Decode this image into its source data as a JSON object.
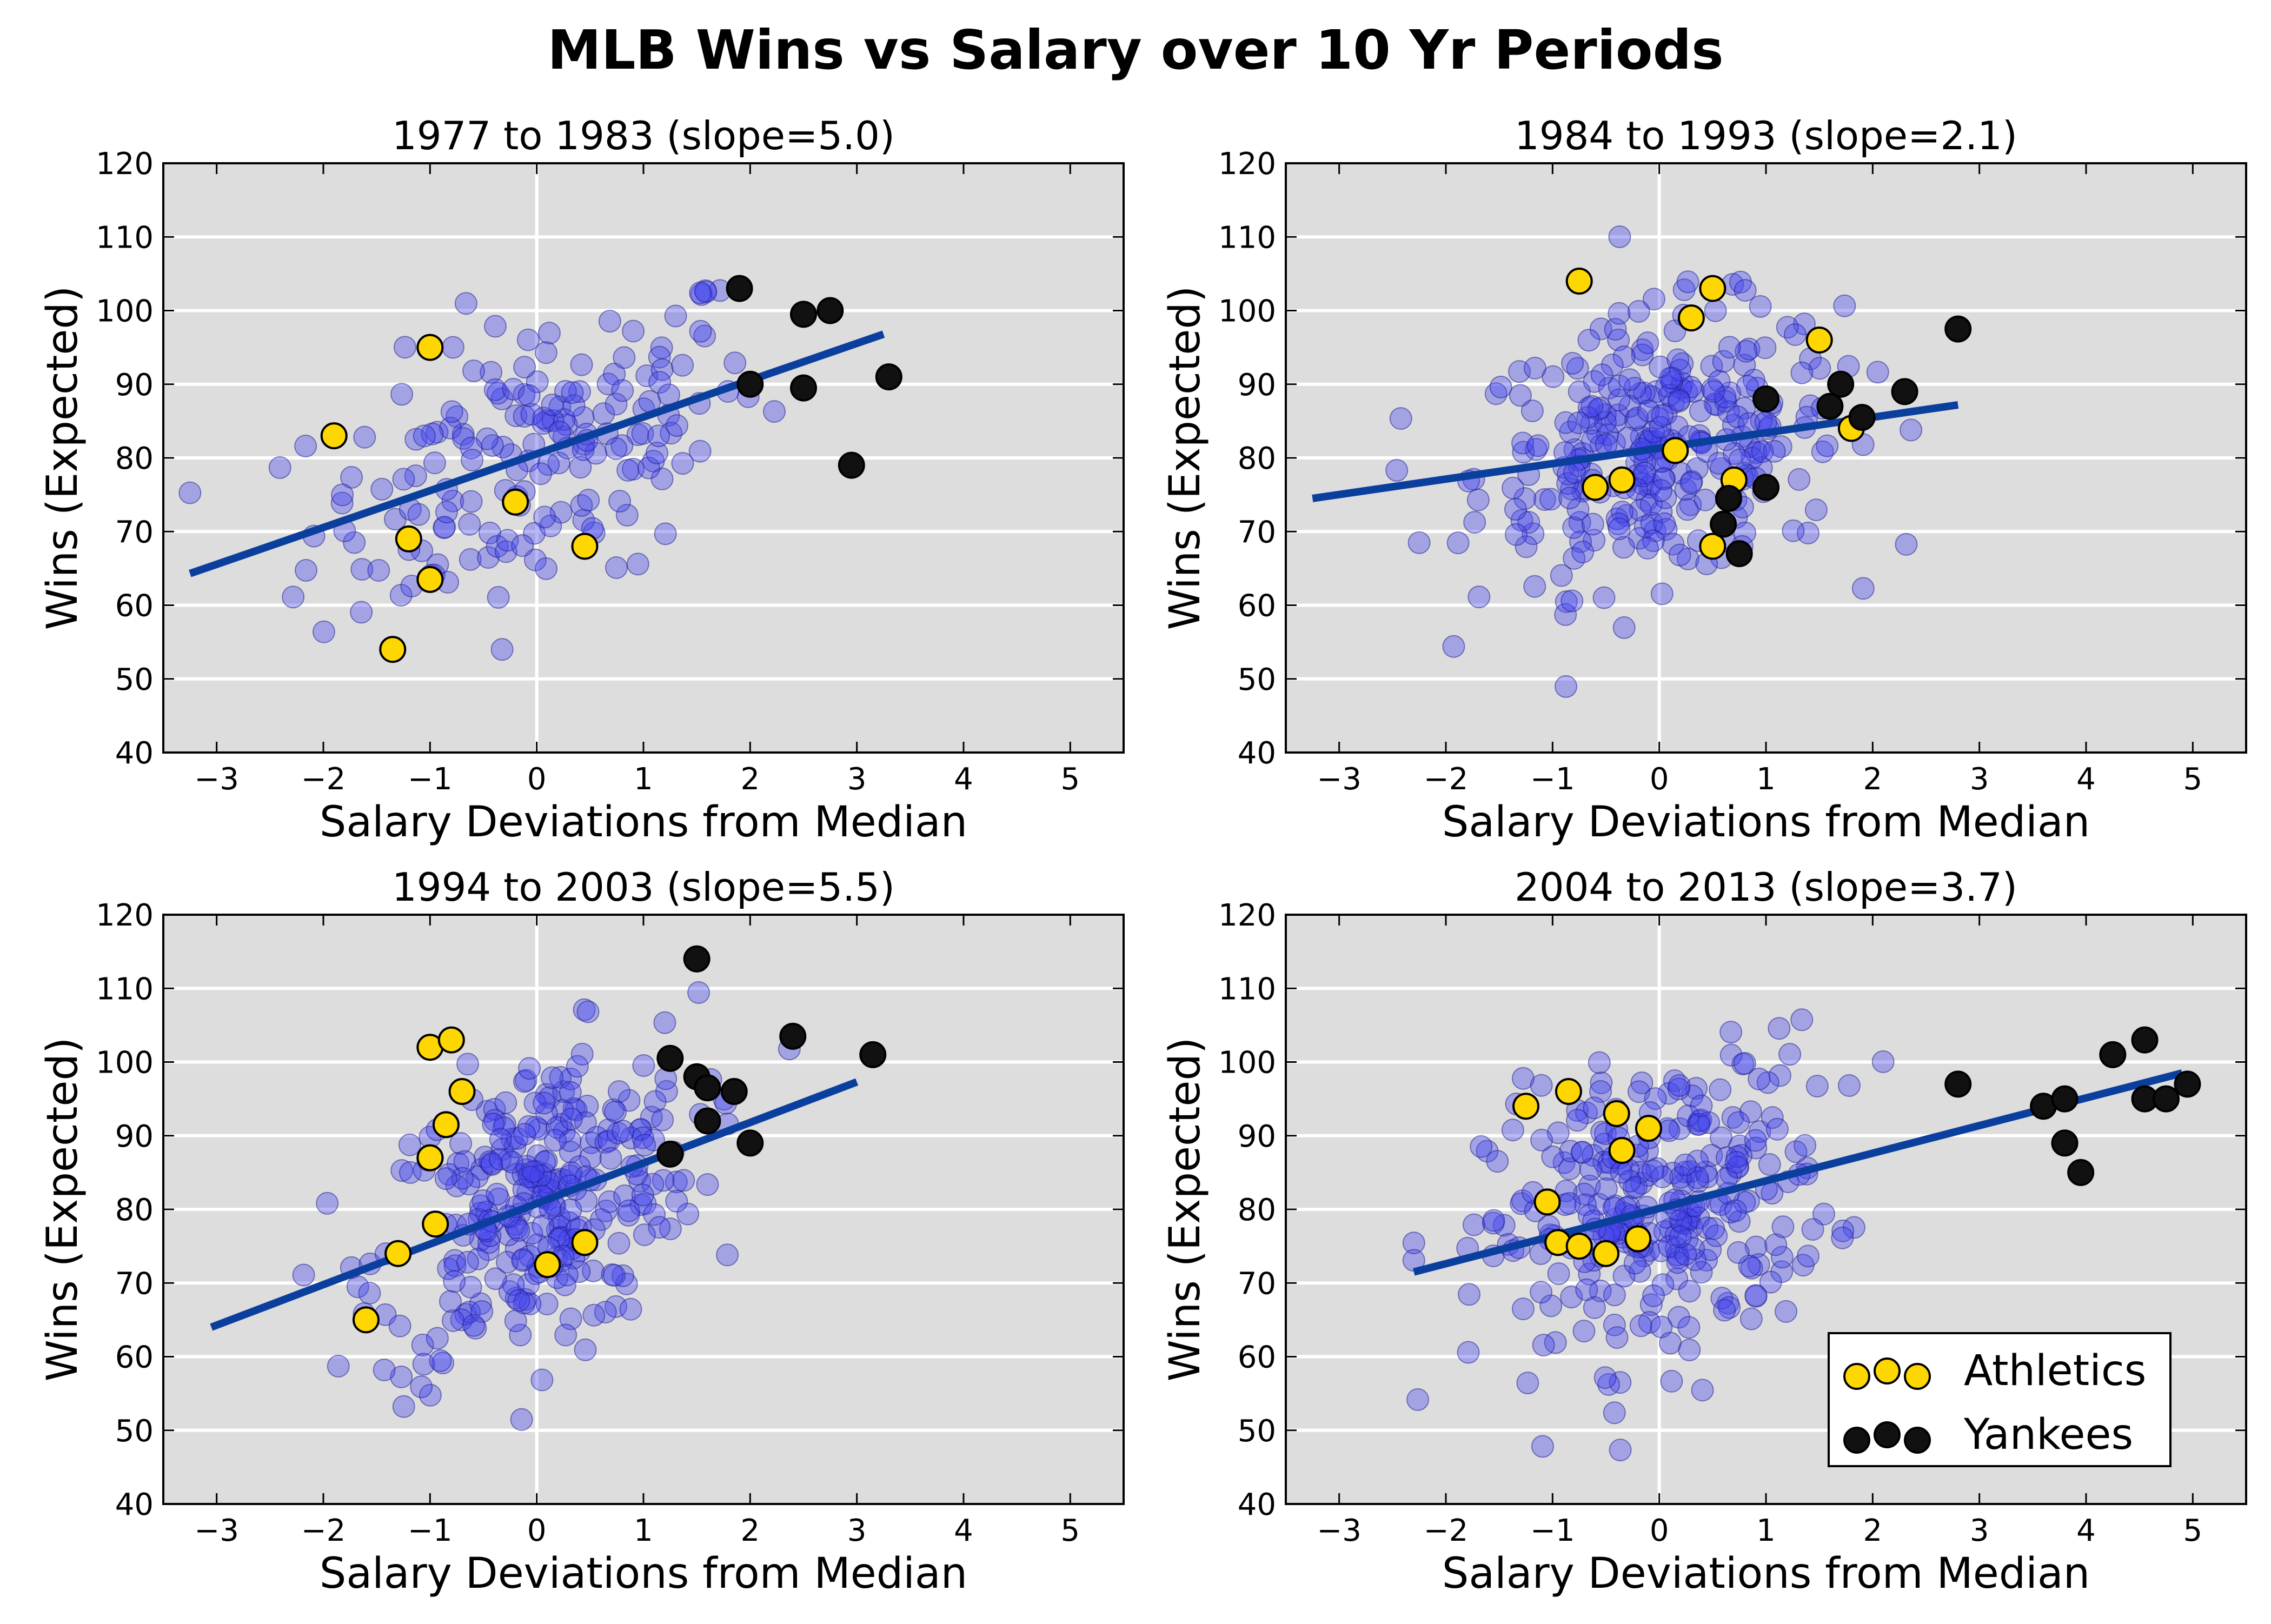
{
  "figure": {
    "title": "MLB Wins vs Salary over 10 Yr Periods"
  },
  "legend": {
    "entries": [
      {
        "label": "Athletics",
        "color": "#ffd700"
      },
      {
        "label": "Yankees",
        "color": "#111111"
      }
    ],
    "placement": "lower-right of bottom-right panel"
  },
  "colors": {
    "panel_bg": "#dddddd",
    "grid": "#ffffff",
    "league_points": "#4444ee",
    "fit_line": "#0a3f9e",
    "athletics": "#ffd700",
    "yankees": "#111111"
  },
  "chart_data": [
    {
      "type": "scatter",
      "title": "1977 to 1983 (slope=5.0)",
      "xlabel": "Salary Deviations from Median",
      "ylabel": "Wins (Expected)",
      "xlim": [
        -3.5,
        5.5
      ],
      "ylim": [
        40,
        120
      ],
      "xticks": [
        "−3",
        "−2",
        "−1",
        "0",
        "1",
        "2",
        "3",
        "4",
        "5"
      ],
      "yticks": [
        "40",
        "50",
        "60",
        "70",
        "80",
        "90",
        "100",
        "110",
        "120"
      ],
      "grid": "horizontal",
      "fit_line": [
        [
          -3.25,
          64.3
        ],
        [
          3.25,
          96.8
        ]
      ],
      "series": [
        {
          "name": "Athletics",
          "points": [
            [
              -1.9,
              83
            ],
            [
              -1.35,
              54
            ],
            [
              -1.2,
              69
            ],
            [
              -1.0,
              95
            ],
            [
              -1.0,
              63.5
            ],
            [
              -0.2,
              74
            ],
            [
              0.45,
              68
            ]
          ]
        },
        {
          "name": "Yankees",
          "points": [
            [
              1.9,
              103
            ],
            [
              2.0,
              90
            ],
            [
              2.5,
              99.5
            ],
            [
              2.5,
              89.5
            ],
            [
              2.75,
              100
            ],
            [
              2.95,
              79
            ],
            [
              3.3,
              91
            ]
          ]
        }
      ]
    },
    {
      "type": "scatter",
      "title": "1984 to 1993 (slope=2.1)",
      "xlabel": "Salary Deviations from Median",
      "ylabel": "Wins (Expected)",
      "xlim": [
        -3.5,
        5.5
      ],
      "ylim": [
        40,
        120
      ],
      "xticks": [
        "−3",
        "−2",
        "−1",
        "0",
        "1",
        "2",
        "3",
        "4",
        "5"
      ],
      "yticks": [
        "40",
        "50",
        "60",
        "70",
        "80",
        "90",
        "100",
        "110",
        "120"
      ],
      "grid": "horizontal",
      "fit_line": [
        [
          -3.25,
          74.5
        ],
        [
          2.8,
          87.2
        ]
      ],
      "series": [
        {
          "name": "Athletics",
          "points": [
            [
              -0.75,
              104
            ],
            [
              0.3,
              99
            ],
            [
              0.5,
              103
            ],
            [
              1.5,
              96
            ],
            [
              -0.6,
              76
            ],
            [
              -0.35,
              77
            ],
            [
              0.15,
              81
            ],
            [
              0.5,
              68
            ],
            [
              0.7,
              77
            ],
            [
              1.8,
              84
            ]
          ]
        },
        {
          "name": "Yankees",
          "points": [
            [
              1.0,
              88
            ],
            [
              1.7,
              90
            ],
            [
              1.6,
              87
            ],
            [
              2.3,
              89
            ],
            [
              1.9,
              85.5
            ],
            [
              2.8,
              97.5
            ],
            [
              0.6,
              71
            ],
            [
              0.65,
              74.5
            ],
            [
              0.75,
              67
            ],
            [
              1.0,
              76
            ]
          ]
        }
      ]
    },
    {
      "type": "scatter",
      "title": "1994 to 2003 (slope=5.5)",
      "xlabel": "Salary Deviations from Median",
      "ylabel": "Wins (Expected)",
      "xlim": [
        -3.5,
        5.5
      ],
      "ylim": [
        40,
        120
      ],
      "xticks": [
        "−3",
        "−2",
        "−1",
        "0",
        "1",
        "2",
        "3",
        "4",
        "5"
      ],
      "yticks": [
        "40",
        "50",
        "60",
        "70",
        "80",
        "90",
        "100",
        "110",
        "120"
      ],
      "grid": "horizontal",
      "fit_line": [
        [
          -3.05,
          64
        ],
        [
          3.0,
          97.3
        ]
      ],
      "series": [
        {
          "name": "Athletics",
          "points": [
            [
              -1.0,
              102
            ],
            [
              -0.8,
              103
            ],
            [
              -0.7,
              96
            ],
            [
              -0.85,
              91.5
            ],
            [
              -1.0,
              87
            ],
            [
              -0.95,
              78
            ],
            [
              -1.3,
              74
            ],
            [
              -1.6,
              65
            ],
            [
              0.1,
              72.5
            ],
            [
              0.45,
              75.5
            ]
          ]
        },
        {
          "name": "Yankees",
          "points": [
            [
              1.5,
              114
            ],
            [
              1.25,
              100.5
            ],
            [
              1.5,
              98
            ],
            [
              1.6,
              96.5
            ],
            [
              1.85,
              96
            ],
            [
              1.6,
              92
            ],
            [
              2.0,
              89
            ],
            [
              1.25,
              87.5
            ],
            [
              2.4,
              103.5
            ],
            [
              3.15,
              101
            ]
          ]
        }
      ]
    },
    {
      "type": "scatter",
      "title": "2004 to 2013 (slope=3.7)",
      "xlabel": "Salary Deviations from Median",
      "ylabel": "Wins (Expected)",
      "xlim": [
        -3.5,
        5.5
      ],
      "ylim": [
        40,
        120
      ],
      "xticks": [
        "−3",
        "−2",
        "−1",
        "0",
        "1",
        "2",
        "3",
        "4",
        "5"
      ],
      "yticks": [
        "40",
        "50",
        "60",
        "70",
        "80",
        "90",
        "100",
        "110",
        "120"
      ],
      "grid": "horizontal",
      "fit_line": [
        [
          -2.3,
          71.5
        ],
        [
          4.9,
          98.5
        ]
      ],
      "series": [
        {
          "name": "Athletics",
          "points": [
            [
              -1.25,
              94
            ],
            [
              -0.85,
              96
            ],
            [
              -0.4,
              93
            ],
            [
              -0.1,
              91
            ],
            [
              -0.35,
              88
            ],
            [
              -1.05,
              81
            ],
            [
              -0.95,
              75.5
            ],
            [
              -0.75,
              75
            ],
            [
              -0.5,
              74
            ],
            [
              -0.2,
              76
            ]
          ]
        },
        {
          "name": "Yankees",
          "points": [
            [
              2.8,
              97
            ],
            [
              3.6,
              94
            ],
            [
              3.8,
              95
            ],
            [
              3.8,
              89
            ],
            [
              3.95,
              85
            ],
            [
              4.25,
              101
            ],
            [
              4.55,
              103
            ],
            [
              4.55,
              95
            ],
            [
              4.75,
              95
            ],
            [
              4.95,
              97
            ]
          ]
        }
      ]
    }
  ]
}
